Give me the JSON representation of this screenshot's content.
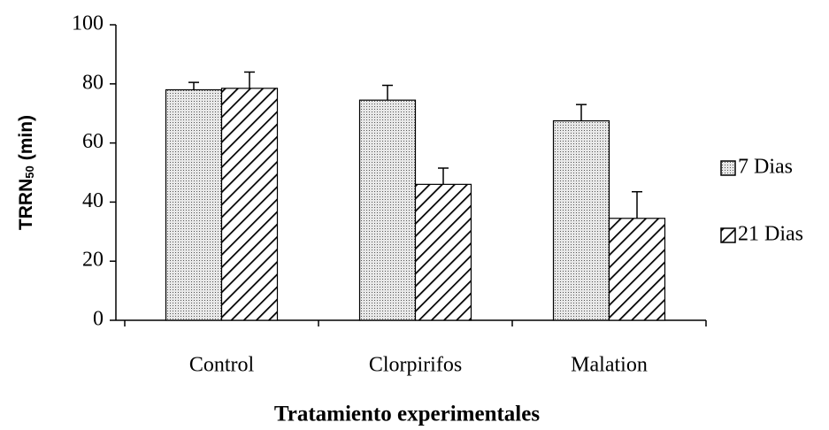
{
  "chart_data": {
    "type": "bar",
    "x_label": "Tratamiento experimentales",
    "y_label": {
      "main": "TRRN",
      "sub": "50",
      "unit": "(min)"
    },
    "categories": [
      "Control",
      "Clorpirifos",
      "Malation"
    ],
    "series": [
      {
        "name": "7 Dias",
        "color": "#000000",
        "pattern": "dots",
        "values": [
          78,
          74.5,
          67.5
        ],
        "errors": [
          2.5,
          5,
          5.5
        ]
      },
      {
        "name": "21 Dias",
        "color": "#000000",
        "pattern": "hatch",
        "values": [
          78.5,
          46,
          34.5
        ],
        "errors": [
          5.5,
          5.5,
          9
        ]
      }
    ],
    "ylim": [
      0,
      100
    ],
    "yticks": [
      0,
      20,
      40,
      60,
      80,
      100
    ],
    "grid": false,
    "legend": "right"
  }
}
